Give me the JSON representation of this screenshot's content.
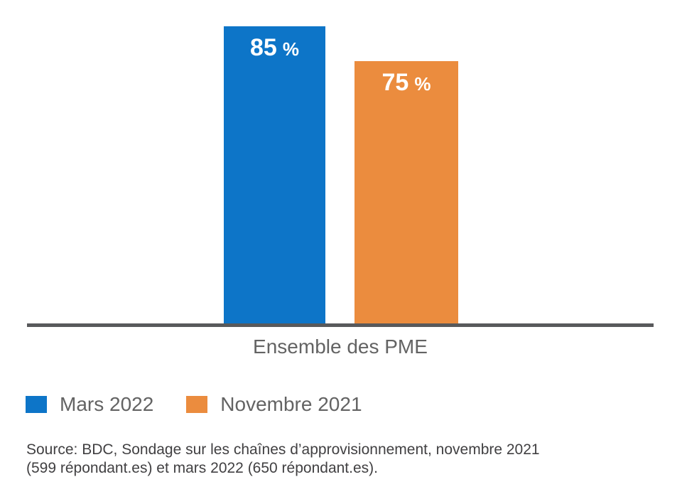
{
  "chart_data": {
    "type": "bar",
    "categories": [
      "Ensemble des PME"
    ],
    "series": [
      {
        "name": "Mars 2022",
        "values": [
          85
        ],
        "color": "#0D75C8"
      },
      {
        "name": "Novembre 2021",
        "values": [
          75
        ],
        "color": "#EB8C3E"
      }
    ],
    "value_suffix": "%",
    "unit": "percent",
    "ylim": [
      0,
      100
    ],
    "grid": false,
    "xlabel": "Ensemble des PME",
    "ylabel": "",
    "legend_position": "bottom-left",
    "data_labels": [
      "85 %",
      "75 %"
    ]
  },
  "legend": {
    "items": [
      {
        "label": "Mars 2022",
        "color": "#0D75C8"
      },
      {
        "label": "Novembre 2021",
        "color": "#EB8C3E"
      }
    ]
  },
  "source_note": {
    "line1": "Source: BDC, Sondage sur les chaînes d’approvisionnement, novembre 2021",
    "line2": "(599 répondant.es) et mars 2022 (650 répondant.es)."
  },
  "colors": {
    "axis_line": "#58595B",
    "axis_text": "#636363",
    "source_text": "#414042",
    "bar_label_text": "#FFFFFF"
  }
}
